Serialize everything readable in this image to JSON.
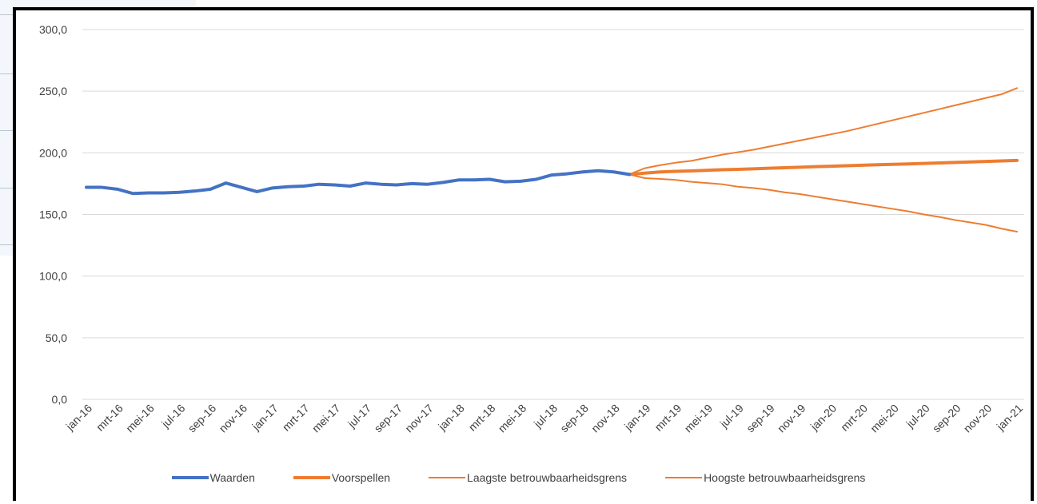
{
  "chart_data": {
    "type": "line",
    "title": "",
    "xlabel": "",
    "ylabel": "",
    "ylim": [
      0,
      300
    ],
    "y_ticks": [
      "0,0",
      "50,0",
      "100,0",
      "150,0",
      "200,0",
      "250,0",
      "300,0"
    ],
    "grid": true,
    "legend_position": "bottom",
    "x_tick_labels": [
      "jan-16",
      "mrt-16",
      "mei-16",
      "jul-16",
      "sep-16",
      "nov-16",
      "jan-17",
      "mrt-17",
      "mei-17",
      "jul-17",
      "sep-17",
      "nov-17",
      "jan-18",
      "mrt-18",
      "mei-18",
      "jul-18",
      "sep-18",
      "nov-18",
      "jan-19",
      "mrt-19",
      "mei-19",
      "jul-19",
      "sep-19",
      "nov-19",
      "jan-20",
      "mrt-20",
      "mei-20",
      "jul-20",
      "sep-20",
      "nov-20",
      "jan-21"
    ],
    "months": [
      "jan-16",
      "feb-16",
      "mrt-16",
      "apr-16",
      "mei-16",
      "jun-16",
      "jul-16",
      "aug-16",
      "sep-16",
      "okt-16",
      "nov-16",
      "dec-16",
      "jan-17",
      "feb-17",
      "mrt-17",
      "apr-17",
      "mei-17",
      "jun-17",
      "jul-17",
      "aug-17",
      "sep-17",
      "okt-17",
      "nov-17",
      "dec-17",
      "jan-18",
      "feb-18",
      "mrt-18",
      "apr-18",
      "mei-18",
      "jun-18",
      "jul-18",
      "aug-18",
      "sep-18",
      "okt-18",
      "nov-18",
      "dec-18",
      "jan-19",
      "feb-19",
      "mrt-19",
      "apr-19",
      "mei-19",
      "jun-19",
      "jul-19",
      "aug-19",
      "sep-19",
      "okt-19",
      "nov-19",
      "dec-19",
      "jan-20",
      "feb-20",
      "mrt-20",
      "apr-20",
      "mei-20",
      "jun-20",
      "jul-20",
      "aug-20",
      "sep-20",
      "okt-20",
      "nov-20",
      "dec-20",
      "jan-21"
    ],
    "series": [
      {
        "name": "Waarden",
        "color": "#4472c4",
        "width": 4,
        "start_index": 0,
        "values": [
          172.0,
          172.0,
          170.5,
          167.0,
          167.5,
          167.5,
          168.0,
          169.0,
          170.5,
          175.5,
          172.0,
          168.5,
          171.5,
          172.5,
          173.0,
          174.5,
          174.0,
          173.0,
          175.5,
          174.5,
          174.0,
          175.0,
          174.5,
          176.0,
          178.0,
          178.0,
          178.5,
          176.5,
          177.0,
          178.5,
          182.0,
          183.0,
          184.5,
          185.5,
          184.5,
          182.5
        ]
      },
      {
        "name": "Voorspellen",
        "color": "#ed7d31",
        "width": 4,
        "start_index": 35,
        "values": [
          182.5,
          183.5,
          184.5,
          185.0,
          185.3,
          185.8,
          186.3,
          186.6,
          187.0,
          187.5,
          187.9,
          188.3,
          188.8,
          189.1,
          189.5,
          189.9,
          190.3,
          190.7,
          191.0,
          191.4,
          191.8,
          192.2,
          192.6,
          193.0,
          193.4,
          193.8
        ]
      },
      {
        "name": "Laagste betrouwbaarheidsgrens",
        "color": "#ed7d31",
        "width": 2,
        "start_index": 35,
        "values": [
          182.5,
          179.5,
          178.8,
          178.0,
          176.5,
          175.5,
          174.5,
          172.5,
          171.5,
          170.0,
          168.0,
          166.5,
          164.5,
          162.5,
          160.5,
          158.5,
          156.5,
          154.5,
          152.5,
          150.0,
          148.0,
          145.5,
          143.5,
          141.5,
          138.5,
          136.0
        ]
      },
      {
        "name": "Hoogste betrouwbaarheidsgrens",
        "color": "#ed7d31",
        "width": 2,
        "start_index": 35,
        "values": [
          182.5,
          187.5,
          190.0,
          192.0,
          193.5,
          196.0,
          198.5,
          200.5,
          202.5,
          205.0,
          207.5,
          210.0,
          212.5,
          215.0,
          217.5,
          220.5,
          223.5,
          226.5,
          229.5,
          232.5,
          235.5,
          238.5,
          241.5,
          244.5,
          247.5,
          252.5
        ]
      }
    ]
  }
}
